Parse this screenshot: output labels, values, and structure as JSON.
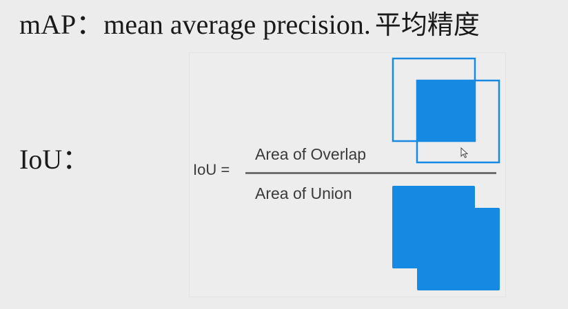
{
  "title": {
    "prefix": "mAP：mean average precision.",
    "chinese": "平均精度"
  },
  "iou_label": "IoU：",
  "formula": {
    "lhs": "IoU =",
    "numerator": "Area of Overlap",
    "denominator": "Area of Union"
  },
  "colors": {
    "background": "#ececec",
    "box_blue": "#1689e3",
    "fraction_bar": "#6e6e6e"
  },
  "icons": [
    "mouse-cursor-icon"
  ]
}
